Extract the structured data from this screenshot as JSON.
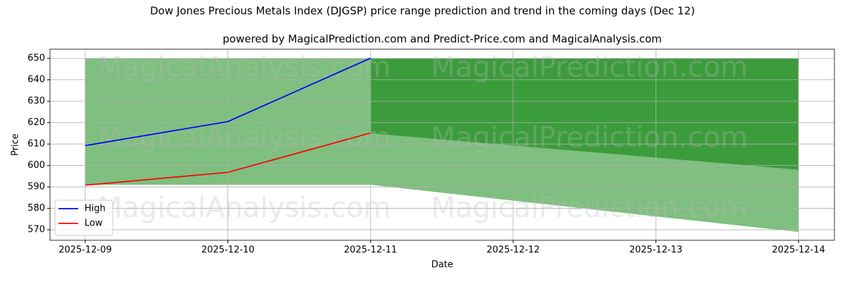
{
  "chart_data": {
    "type": "line",
    "title": "Dow Jones Precious Metals Index (DJGSP) price range prediction and trend in the coming days (Dec 12)",
    "subtitle": "powered by MagicalPrediction.com and Predict-Price.com and MagicalAnalysis.com",
    "x_label": "Date",
    "y_label": "Price",
    "x": [
      "2025-12-09",
      "2025-12-10",
      "2025-12-11",
      "2025-12-12",
      "2025-12-13",
      "2025-12-14"
    ],
    "series": [
      {
        "name": "High",
        "color": "#0000ff",
        "values": [
          609.3,
          620.5,
          650.1,
          null,
          null,
          null
        ]
      },
      {
        "name": "Low",
        "color": "#ff0000",
        "values": [
          590.8,
          596.8,
          615.2,
          null,
          null,
          null
        ]
      }
    ],
    "bands": [
      {
        "color": "#7fbf7f",
        "lower": [
          591,
          591,
          591,
          null,
          null,
          null
        ],
        "upper": [
          650,
          650,
          650,
          null,
          null,
          null
        ]
      },
      {
        "color": "#7fbf7f",
        "lower": [
          null,
          null,
          591,
          583.6,
          576.2,
          569
        ],
        "upper": [
          null,
          null,
          650,
          650,
          650,
          650
        ]
      },
      {
        "color": "#3c9c3c",
        "lower": [
          null,
          null,
          615,
          609.3,
          603.7,
          598
        ],
        "upper": [
          null,
          null,
          650,
          650,
          650,
          650
        ]
      }
    ],
    "ylim": [
      565.1,
      654.3
    ],
    "yticks": [
      570,
      580,
      590,
      600,
      610,
      620,
      630,
      640,
      650
    ],
    "grid": true,
    "legend": "lower left",
    "watermarks": [
      "MagicalAnalysis.com",
      "MagicalPrediction.com"
    ]
  }
}
